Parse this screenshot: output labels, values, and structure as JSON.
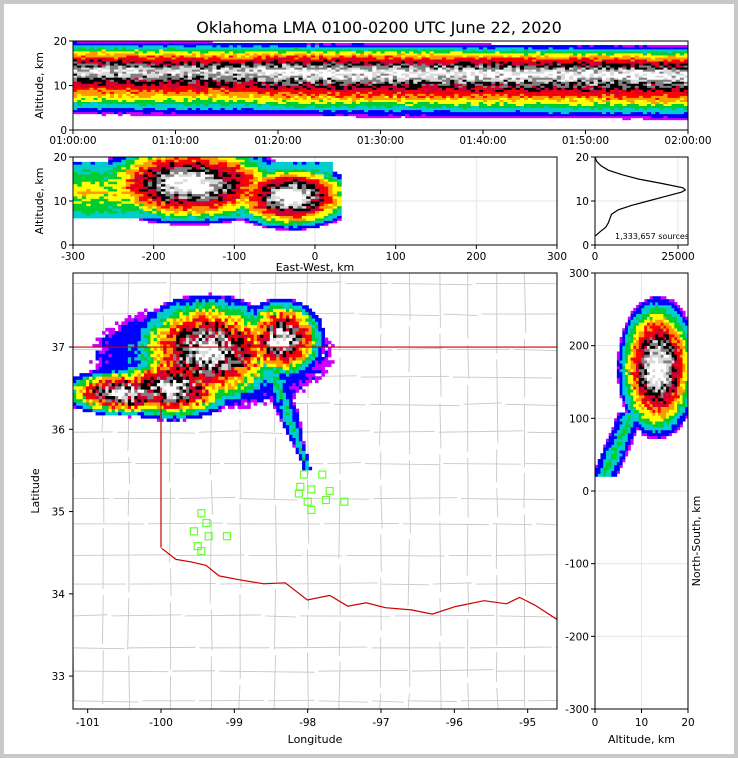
{
  "title": "Oklahoma LMA 0100-0200 UTC June 22, 2020",
  "colors": {
    "page_border": "#c8c8c8",
    "state_border": "#cc0000",
    "county_lines": "#c8c8c8",
    "station_markers": "#66ff33",
    "grid": "#e6e6e6",
    "colormap": [
      "#cc00ff",
      "#0000ff",
      "#00cccc",
      "#00cc33",
      "#ffff00",
      "#ff9900",
      "#ff0000",
      "#cc0033",
      "#000000",
      "#808080",
      "#d9d9d9",
      "#ffffff"
    ]
  },
  "chart_data": [
    {
      "id": "time-height",
      "type": "heatmap",
      "xlabel": "",
      "ylabel": "Altitude, km",
      "xlim": [
        "01:00:00",
        "02:00:00"
      ],
      "ylim": [
        0,
        20
      ],
      "xticks": [
        "01:00:00",
        "01:10:00",
        "01:20:00",
        "01:30:00",
        "01:40:00",
        "01:50:00",
        "02:00:00"
      ],
      "yticks": [
        0,
        10,
        20
      ],
      "peak_altitude_km": [
        13.5,
        12.5
      ],
      "upper_edge_km": [
        20,
        19
      ],
      "lower_edge_km": [
        3,
        2
      ]
    },
    {
      "id": "ew-height",
      "type": "heatmap",
      "xlabel": "East-West, km",
      "ylabel": "Altitude, km",
      "xlim": [
        -300,
        300
      ],
      "ylim": [
        0,
        20
      ],
      "xticks": [
        -300,
        -200,
        -100,
        0,
        100,
        200,
        300
      ],
      "yticks": [
        0,
        10,
        20
      ],
      "cores": [
        {
          "ew_km": -155,
          "alt_km": 14,
          "ew_half_width_km": 60,
          "alt_half_height_km": 5
        },
        {
          "ew_km": -30,
          "alt_km": 11,
          "ew_half_width_km": 40,
          "alt_half_height_km": 4
        }
      ]
    },
    {
      "id": "altitude-histogram",
      "type": "line",
      "xlabel": "",
      "ylabel": "",
      "xlim": [
        0,
        28000
      ],
      "ylim": [
        0,
        20
      ],
      "xticks": [
        0,
        25000
      ],
      "yticks": [
        0,
        10,
        20
      ],
      "annotation": "1,333,657 sources",
      "altitude_km": [
        2,
        3,
        4,
        5,
        6,
        7,
        8,
        9,
        10,
        11,
        12,
        12.5,
        13,
        14,
        15,
        16,
        17,
        18,
        19,
        20
      ],
      "source_counts": [
        0,
        1500,
        3200,
        4000,
        4500,
        5000,
        7000,
        11000,
        16000,
        21000,
        26000,
        27200,
        26500,
        20000,
        13000,
        8000,
        4000,
        1800,
        500,
        0
      ]
    },
    {
      "id": "plan-view",
      "type": "heatmap",
      "xlabel": "Longitude",
      "ylabel": "Latitude",
      "xlim": [
        -101.2,
        -94.6
      ],
      "ylim": [
        32.6,
        37.9
      ],
      "xticks": [
        -101,
        -100,
        -99,
        -98,
        -97,
        -96,
        -95
      ],
      "yticks": [
        33,
        34,
        35,
        36,
        37
      ],
      "stations": [
        {
          "lon": -98.05,
          "lat": 35.45
        },
        {
          "lon": -97.8,
          "lat": 35.45
        },
        {
          "lon": -98.1,
          "lat": 35.3
        },
        {
          "lon": -97.95,
          "lat": 35.27
        },
        {
          "lon": -98.12,
          "lat": 35.22
        },
        {
          "lon": -97.7,
          "lat": 35.25
        },
        {
          "lon": -98.0,
          "lat": 35.12
        },
        {
          "lon": -97.75,
          "lat": 35.14
        },
        {
          "lon": -97.5,
          "lat": 35.12
        },
        {
          "lon": -97.95,
          "lat": 35.02
        },
        {
          "lon": -99.45,
          "lat": 34.98
        },
        {
          "lon": -99.38,
          "lat": 34.86
        },
        {
          "lon": -99.55,
          "lat": 34.76
        },
        {
          "lon": -99.35,
          "lat": 34.7
        },
        {
          "lon": -99.1,
          "lat": 34.7
        },
        {
          "lon": -99.5,
          "lat": 34.58
        },
        {
          "lon": -99.45,
          "lat": 34.52
        }
      ],
      "storm_cores": [
        {
          "lon": -99.35,
          "lat": 36.95,
          "r_lon": 0.55,
          "r_lat": 0.35
        },
        {
          "lon": -99.85,
          "lat": 36.5,
          "r_lon": 0.45,
          "r_lat": 0.2
        },
        {
          "lon": -100.5,
          "lat": 36.45,
          "r_lon": 0.45,
          "r_lat": 0.15
        },
        {
          "lon": -98.35,
          "lat": 37.1,
          "r_lon": 0.3,
          "r_lat": 0.25
        }
      ]
    },
    {
      "id": "ns-height",
      "type": "heatmap",
      "xlabel": "Altitude, km",
      "ylabel": "North-South, km",
      "xlim": [
        0,
        20
      ],
      "ylim": [
        -300,
        300
      ],
      "xticks": [
        0,
        10,
        20
      ],
      "yticks": [
        -300,
        -200,
        -100,
        0,
        100,
        200,
        300
      ],
      "core": {
        "alt_km": 13.5,
        "ns_km": 170,
        "alt_half_width_km": 4,
        "ns_half_height_km": 40
      }
    }
  ]
}
